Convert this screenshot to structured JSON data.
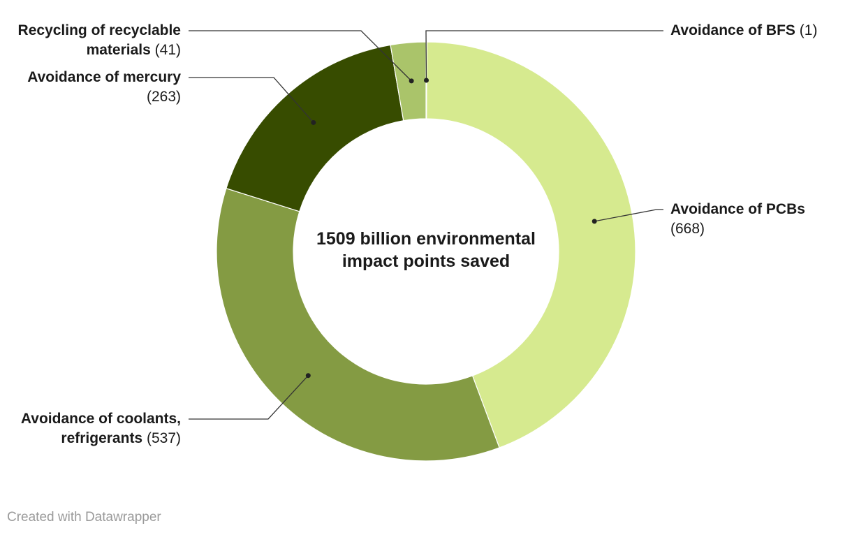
{
  "chart_data": {
    "type": "pie",
    "style": "donut",
    "center_title": "1509 billion environmental impact points saved",
    "slices": [
      {
        "label": "Avoidance of BFS",
        "value": 1,
        "value_text": "(1)",
        "color": "#c0d88a"
      },
      {
        "label": "Avoidance of PCBs",
        "value": 668,
        "value_text": "(668)",
        "color": "#d6ea8f"
      },
      {
        "label": "Avoidance of coolants, refrigerants",
        "value": 537,
        "value_text": "(537)",
        "color": "#849b43"
      },
      {
        "label": "Avoidance of mercury",
        "value": 263,
        "value_text": "(263)",
        "color": "#374c00"
      },
      {
        "label": "Recycling of recyclable materials",
        "value": 41,
        "value_text": "(41)",
        "color": "#aac46a"
      }
    ],
    "label_lines": {
      "bfs": {
        "name": "Avoidance of BFS",
        "value": "(1)"
      },
      "pcbs": {
        "name": "Avoidance of PCBs",
        "value": "(668)"
      },
      "coolants": {
        "line1": "Avoidance of coolants,",
        "name2": "refrigerants",
        "value": "(537)"
      },
      "mercury": {
        "name": "Avoidance of mercury",
        "value": "(263)"
      },
      "recycling": {
        "line1": "Recycling of recyclable",
        "name2": "materials",
        "value": "(41)"
      }
    }
  },
  "footer": {
    "credit": "Created with Datawrapper"
  }
}
